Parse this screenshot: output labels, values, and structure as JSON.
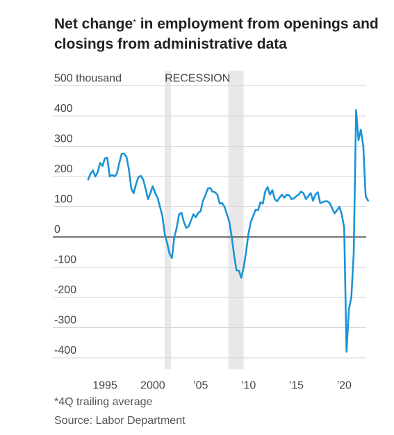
{
  "title": {
    "before_marker": "Net change",
    "marker": "*",
    "after_marker": " in employment from openings and closings from administrative data"
  },
  "footnote": "*4Q trailing average",
  "source": "Source: Labor Department",
  "colors": {
    "line": "#1b93d6",
    "recession": "#e8e8e8",
    "grid": "#d4d4d4",
    "zero": "#222222"
  },
  "chart_data": {
    "type": "line",
    "title": "Net change* in employment from openings and closings from administrative data",
    "ylabel": "thousand",
    "ylim": [
      -420,
      500
    ],
    "xlim": [
      1992.0,
      2023.2
    ],
    "y_ticks": [
      {
        "value": 500,
        "label": "500 thousand"
      },
      {
        "value": 400,
        "label": "400"
      },
      {
        "value": 300,
        "label": "300"
      },
      {
        "value": 200,
        "label": "200"
      },
      {
        "value": 100,
        "label": "100"
      },
      {
        "value": 0,
        "label": "0"
      },
      {
        "value": -100,
        "label": "-100"
      },
      {
        "value": -200,
        "label": "-200"
      },
      {
        "value": -300,
        "label": "-300"
      },
      {
        "value": -400,
        "label": "-400"
      }
    ],
    "x_ticks": [
      {
        "value": 1995,
        "label": "1995"
      },
      {
        "value": 2000,
        "label": "2000"
      },
      {
        "value": 2005,
        "label": "’05"
      },
      {
        "value": 2010,
        "label": "’10"
      },
      {
        "value": 2015,
        "label": "’15"
      },
      {
        "value": 2020,
        "label": "’20"
      }
    ],
    "recession_label": "RECESSION",
    "recessions": [
      [
        2001.25,
        2001.9
      ],
      [
        2007.9,
        2009.5
      ]
    ],
    "grid": true,
    "series": [
      {
        "values": [
          [
            1993.25,
            190
          ],
          [
            1993.5,
            210
          ],
          [
            1993.75,
            220
          ],
          [
            1994.0,
            200
          ],
          [
            1994.25,
            215
          ],
          [
            1994.5,
            245
          ],
          [
            1994.75,
            235
          ],
          [
            1995.0,
            260
          ],
          [
            1995.25,
            262
          ],
          [
            1995.5,
            200
          ],
          [
            1995.75,
            205
          ],
          [
            1996.0,
            200
          ],
          [
            1996.25,
            210
          ],
          [
            1996.5,
            245
          ],
          [
            1996.75,
            275
          ],
          [
            1997.0,
            276
          ],
          [
            1997.25,
            265
          ],
          [
            1997.5,
            225
          ],
          [
            1997.75,
            160
          ],
          [
            1998.0,
            145
          ],
          [
            1998.25,
            175
          ],
          [
            1998.5,
            198
          ],
          [
            1998.75,
            202
          ],
          [
            1999.0,
            190
          ],
          [
            1999.25,
            160
          ],
          [
            1999.5,
            125
          ],
          [
            1999.75,
            145
          ],
          [
            2000.0,
            168
          ],
          [
            2000.25,
            145
          ],
          [
            2000.5,
            130
          ],
          [
            2000.75,
            100
          ],
          [
            2001.0,
            70
          ],
          [
            2001.25,
            10
          ],
          [
            2001.5,
            -20
          ],
          [
            2001.75,
            -55
          ],
          [
            2002.0,
            -70
          ],
          [
            2002.25,
            0
          ],
          [
            2002.5,
            30
          ],
          [
            2002.75,
            75
          ],
          [
            2003.0,
            80
          ],
          [
            2003.25,
            50
          ],
          [
            2003.5,
            30
          ],
          [
            2003.75,
            35
          ],
          [
            2004.0,
            55
          ],
          [
            2004.25,
            75
          ],
          [
            2004.5,
            65
          ],
          [
            2004.75,
            80
          ],
          [
            2005.0,
            85
          ],
          [
            2005.25,
            120
          ],
          [
            2005.5,
            138
          ],
          [
            2005.75,
            160
          ],
          [
            2006.0,
            162
          ],
          [
            2006.25,
            150
          ],
          [
            2006.5,
            148
          ],
          [
            2006.75,
            140
          ],
          [
            2007.0,
            110
          ],
          [
            2007.25,
            112
          ],
          [
            2007.5,
            100
          ],
          [
            2007.75,
            75
          ],
          [
            2008.0,
            50
          ],
          [
            2008.25,
            0
          ],
          [
            2008.5,
            -60
          ],
          [
            2008.75,
            -110
          ],
          [
            2009.0,
            -112
          ],
          [
            2009.25,
            -135
          ],
          [
            2009.5,
            -100
          ],
          [
            2009.75,
            -50
          ],
          [
            2010.0,
            10
          ],
          [
            2010.25,
            50
          ],
          [
            2010.5,
            70
          ],
          [
            2010.75,
            90
          ],
          [
            2011.0,
            88
          ],
          [
            2011.25,
            115
          ],
          [
            2011.5,
            110
          ],
          [
            2011.75,
            150
          ],
          [
            2012.0,
            165
          ],
          [
            2012.25,
            140
          ],
          [
            2012.5,
            155
          ],
          [
            2012.75,
            125
          ],
          [
            2013.0,
            118
          ],
          [
            2013.25,
            130
          ],
          [
            2013.5,
            140
          ],
          [
            2013.75,
            130
          ],
          [
            2014.0,
            140
          ],
          [
            2014.25,
            138
          ],
          [
            2014.5,
            125
          ],
          [
            2014.75,
            128
          ],
          [
            2015.0,
            135
          ],
          [
            2015.25,
            140
          ],
          [
            2015.5,
            150
          ],
          [
            2015.75,
            145
          ],
          [
            2016.0,
            125
          ],
          [
            2016.25,
            135
          ],
          [
            2016.5,
            145
          ],
          [
            2016.75,
            120
          ],
          [
            2017.0,
            140
          ],
          [
            2017.25,
            148
          ],
          [
            2017.5,
            112
          ],
          [
            2017.75,
            115
          ],
          [
            2018.0,
            118
          ],
          [
            2018.25,
            118
          ],
          [
            2018.5,
            112
          ],
          [
            2018.75,
            95
          ],
          [
            2019.0,
            78
          ],
          [
            2019.25,
            88
          ],
          [
            2019.5,
            100
          ],
          [
            2019.75,
            75
          ],
          [
            2020.0,
            30
          ],
          [
            2020.25,
            -380
          ],
          [
            2020.5,
            -240
          ],
          [
            2020.75,
            -200
          ],
          [
            2021.0,
            -55
          ],
          [
            2021.25,
            420
          ],
          [
            2021.5,
            320
          ],
          [
            2021.75,
            355
          ],
          [
            2022.0,
            300
          ],
          [
            2022.25,
            135
          ],
          [
            2022.5,
            120
          ]
        ]
      }
    ]
  }
}
